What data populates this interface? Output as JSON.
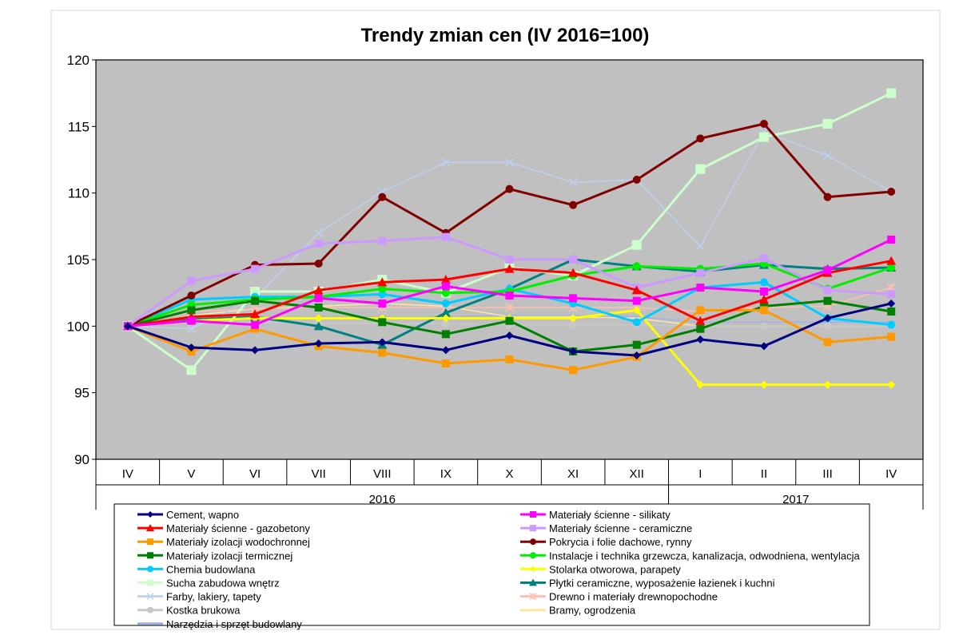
{
  "chart_data": {
    "type": "line",
    "title": "Trendy zmian cen (IV 2016=100)",
    "categories": [
      "IV",
      "V",
      "VI",
      "VII",
      "VIII",
      "IX",
      "X",
      "XI",
      "XII",
      "I",
      "II",
      "III",
      "IV"
    ],
    "year_groups": [
      {
        "label": "2016",
        "from": 0,
        "to": 8
      },
      {
        "label": "2017",
        "from": 9,
        "to": 12
      }
    ],
    "ylim": [
      90,
      120
    ],
    "yticks": [
      90,
      95,
      100,
      105,
      110,
      115,
      120
    ],
    "grid": false,
    "legend_position": "bottom",
    "plot_background": "#c0c0c0",
    "series": [
      {
        "name": "Cement, wapno",
        "color": "#000080",
        "marker": "diamond",
        "values": [
          100,
          98.4,
          98.2,
          98.7,
          98.8,
          98.2,
          99.3,
          98.1,
          97.8,
          99.0,
          98.5,
          100.6,
          101.7
        ]
      },
      {
        "name": "Materiały ścienne - silikaty",
        "color": "#ff00ff",
        "marker": "square",
        "values": [
          100,
          100.4,
          100.1,
          102.1,
          101.7,
          103.0,
          102.3,
          102.1,
          101.9,
          102.9,
          102.6,
          104.2,
          106.5
        ]
      },
      {
        "name": "Materiały ścienne - gazobetony",
        "color": "#ff0000",
        "marker": "triangle",
        "values": [
          100,
          100.7,
          100.9,
          102.7,
          103.3,
          103.5,
          104.3,
          104.0,
          102.7,
          100.4,
          102.0,
          104.0,
          104.9
        ]
      },
      {
        "name": "Materiały ścienne - ceramiczne",
        "color": "#cc99ff",
        "marker": "square",
        "values": [
          100,
          103.4,
          104.3,
          106.2,
          106.4,
          106.7,
          105.0,
          105.0,
          102.9,
          104.0,
          105.1,
          102.7,
          102.4
        ]
      },
      {
        "name": "Materiały izolacji wodochronnej",
        "color": "#ff9900",
        "marker": "square",
        "values": [
          100,
          98.1,
          99.8,
          98.5,
          98.0,
          97.2,
          97.5,
          96.7,
          97.7,
          101.2,
          101.2,
          98.8,
          99.2
        ]
      },
      {
        "name": "Pokrycia i folie dachowe, rynny",
        "color": "#800000",
        "marker": "circle",
        "values": [
          100,
          102.3,
          104.6,
          104.7,
          109.7,
          107.0,
          110.3,
          109.1,
          111.0,
          114.1,
          115.2,
          109.7,
          110.1
        ]
      },
      {
        "name": "Materiały izolacji termicznej",
        "color": "#008000",
        "marker": "square",
        "values": [
          100,
          101.2,
          101.9,
          101.4,
          100.3,
          99.4,
          100.4,
          98.1,
          98.6,
          99.8,
          101.5,
          101.9,
          101.1
        ]
      },
      {
        "name": "Instalacje i technika grzewcza, kanalizacja, odwodniena, wentylacja",
        "color": "#00ee00",
        "marker": "circle",
        "values": [
          100,
          101.6,
          102.0,
          102.2,
          102.8,
          102.5,
          102.6,
          103.8,
          104.5,
          104.3,
          104.7,
          102.8,
          104.4
        ]
      },
      {
        "name": "Chemia budowlana",
        "color": "#00ccff",
        "marker": "circle",
        "values": [
          100,
          102.0,
          102.2,
          102.2,
          102.4,
          101.7,
          102.8,
          101.7,
          100.3,
          102.9,
          103.3,
          100.6,
          100.1
        ]
      },
      {
        "name": "Stolarka otworowa, parapety",
        "color": "#ffff00",
        "marker": "diamond",
        "values": [
          100,
          100.4,
          100.6,
          100.6,
          100.6,
          100.6,
          100.6,
          100.6,
          101.2,
          95.6,
          95.6,
          95.6,
          95.6
        ]
      },
      {
        "name": "Sucha zabudowa wnętrz",
        "color": "#ccffcc",
        "marker": "square",
        "values": [
          100,
          96.7,
          102.6,
          102.6,
          103.5,
          102.5,
          104.4,
          103.8,
          106.1,
          111.8,
          114.2,
          115.2,
          117.5
        ]
      },
      {
        "name": "Płytki ceramiczne, wyposażenie łazienek i kuchni",
        "color": "#008080",
        "marker": "triangle",
        "values": [
          100,
          100.5,
          100.7,
          100.0,
          98.6,
          101.0,
          102.8,
          105.0,
          104.5,
          104.1,
          104.6,
          104.3,
          104.4
        ]
      },
      {
        "name": "Farby, lakiery, tapety",
        "color": "#c0d0f0",
        "marker": "x",
        "values": [
          100,
          99.8,
          102.1,
          107.0,
          110.1,
          112.3,
          112.3,
          110.8,
          111.0,
          106.0,
          114.6,
          112.8,
          110.1
        ]
      },
      {
        "name": "Drewno i materiały drewnopochodne",
        "color": "#ffc0b0",
        "marker": "star",
        "values": [
          100,
          101.1,
          101.3,
          101.4,
          101.4,
          101.4,
          101.4,
          101.4,
          101.4,
          101.1,
          101.4,
          101.5,
          102.9
        ]
      },
      {
        "name": "Kostka brukowa",
        "color": "#c8c8c8",
        "marker": "circle",
        "values": [
          100,
          100.3,
          100.3,
          100.2,
          100.2,
          100.2,
          100.1,
          100.1,
          100.1,
          100.0,
          100.0,
          100.0,
          100.0
        ]
      },
      {
        "name": "Bramy, ogrodzenia",
        "color": "#ffe6a0",
        "marker": "dash",
        "values": [
          100,
          100.8,
          101.3,
          101.5,
          101.7,
          101.5,
          100.7,
          100.7,
          100.6,
          100.0,
          100.0,
          100.0,
          100.0
        ]
      },
      {
        "name": "Narzędzia i sprzęt budowlany",
        "color": "#a0b0e8",
        "marker": "dash",
        "values": [
          100,
          100.5,
          100.6,
          100.7,
          100.7,
          100.7,
          100.8,
          100.8,
          100.7,
          100.3,
          100.3,
          100.3,
          100.3
        ]
      }
    ]
  }
}
